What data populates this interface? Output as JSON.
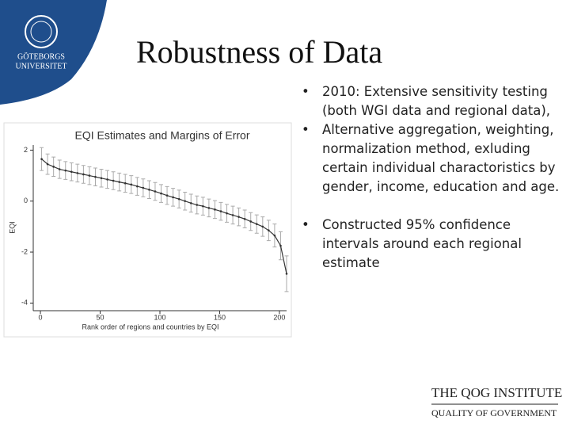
{
  "slide": {
    "title": "Robustness of Data",
    "bullets": [
      "2010: Extensive sensitivity testing (both WGI data and regional data),",
      "Alternative aggregation, weighting, normalization method, exluding certain individual charactoristics by gender, income, education and age.",
      "Constructed 95% confidence intervals around each regional estimate"
    ],
    "logo_university": [
      "GÖTEBORGS",
      "UNIVERSITET"
    ],
    "logo_institute": {
      "line1": "THE QOG INSTITUTE",
      "line2": "QUALITY OF GOVERNMENT"
    }
  },
  "chart_data": {
    "type": "errorbar",
    "title": "EQI Estimates and Margins of Error",
    "xlabel": "Rank order of regions and countries by EQI",
    "ylabel": "EQI",
    "x": [
      1,
      6,
      11,
      16,
      21,
      26,
      31,
      36,
      41,
      46,
      51,
      56,
      61,
      66,
      71,
      76,
      81,
      86,
      91,
      96,
      101,
      106,
      111,
      116,
      121,
      126,
      131,
      136,
      141,
      146,
      151,
      156,
      161,
      166,
      171,
      176,
      181,
      186,
      191,
      196,
      201,
      206
    ],
    "values": [
      1.65,
      1.45,
      1.35,
      1.25,
      1.2,
      1.15,
      1.1,
      1.05,
      1.0,
      0.95,
      0.9,
      0.85,
      0.8,
      0.75,
      0.7,
      0.65,
      0.58,
      0.52,
      0.45,
      0.38,
      0.3,
      0.22,
      0.15,
      0.08,
      0.0,
      -0.08,
      -0.15,
      -0.2,
      -0.27,
      -0.33,
      -0.4,
      -0.48,
      -0.55,
      -0.62,
      -0.7,
      -0.8,
      -0.9,
      -1.0,
      -1.15,
      -1.35,
      -1.75,
      -2.85
    ],
    "errors": [
      0.45,
      0.4,
      0.38,
      0.36,
      0.35,
      0.35,
      0.35,
      0.35,
      0.35,
      0.35,
      0.35,
      0.35,
      0.35,
      0.35,
      0.35,
      0.35,
      0.35,
      0.35,
      0.35,
      0.35,
      0.35,
      0.35,
      0.35,
      0.35,
      0.35,
      0.35,
      0.35,
      0.35,
      0.35,
      0.35,
      0.35,
      0.35,
      0.35,
      0.35,
      0.35,
      0.35,
      0.36,
      0.38,
      0.4,
      0.45,
      0.55,
      0.7
    ],
    "xlim": [
      -6,
      206
    ],
    "ylim": [
      -4.3,
      2.2
    ],
    "xticks": [
      0,
      50,
      100,
      150,
      200
    ],
    "yticks": [
      -4,
      -2,
      0,
      2
    ],
    "color": "#333333",
    "errorbar_color": "#aaaaaa"
  }
}
